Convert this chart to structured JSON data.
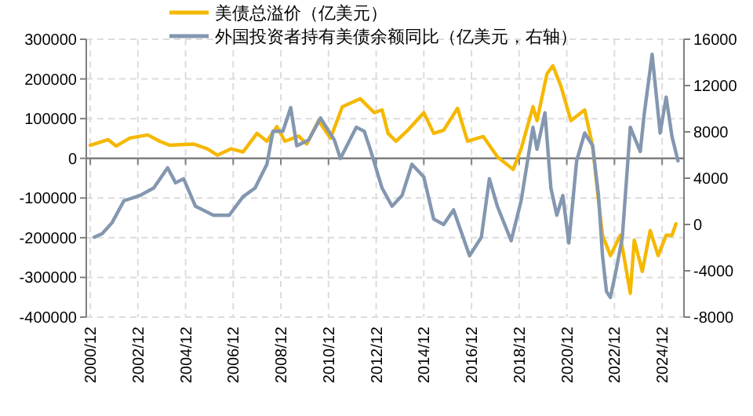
{
  "chart_data": {
    "type": "line",
    "xlim": [
      "2000-10",
      "2025-11"
    ],
    "xticks": [
      {
        "value": "2000-12",
        "label": "2000/12"
      },
      {
        "value": "2002-12",
        "label": "2002/12"
      },
      {
        "value": "2004-12",
        "label": "2004/12"
      },
      {
        "value": "2006-12",
        "label": "2006/12"
      },
      {
        "value": "2008-12",
        "label": "2008/12"
      },
      {
        "value": "2010-12",
        "label": "2010/12"
      },
      {
        "value": "2012-12",
        "label": "2012/12"
      },
      {
        "value": "2014-12",
        "label": "2014/12"
      },
      {
        "value": "2016-12",
        "label": "2016/12"
      },
      {
        "value": "2018-12",
        "label": "2018/12"
      },
      {
        "value": "2020-12",
        "label": "2020/12"
      },
      {
        "value": "2022-12",
        "label": "2022/12"
      },
      {
        "value": "2024-12",
        "label": "2024/12"
      }
    ],
    "ylim": [
      -400000,
      300000
    ],
    "yticks": [
      -400000,
      -300000,
      -200000,
      -100000,
      0,
      100000,
      200000,
      300000
    ],
    "y2lim": [
      -8000,
      16000
    ],
    "y2ticks": [
      -8000,
      -4000,
      0,
      4000,
      8000,
      12000,
      16000
    ],
    "grid": true,
    "legend": "top",
    "line_style": "solid",
    "marker": "none",
    "series": [
      {
        "name": "美债总溢价（亿美元）",
        "color": "#f5b800",
        "x": [
          "2000-12",
          "2001-09",
          "2002-01",
          "2002-08",
          "2003-05",
          "2003-11",
          "2004-04",
          "2005-04",
          "2005-11",
          "2006-04",
          "2006-11",
          "2007-05",
          "2007-12",
          "2008-05",
          "2008-10",
          "2009-02",
          "2009-09",
          "2010-01",
          "2010-07",
          "2011-01",
          "2011-07",
          "2012-04",
          "2012-11",
          "2013-03",
          "2013-06",
          "2013-10",
          "2014-04",
          "2014-12",
          "2015-05",
          "2015-10",
          "2016-05",
          "2016-10",
          "2017-06",
          "2018-01",
          "2018-09",
          "2019-01",
          "2019-07",
          "2019-09",
          "2020-02",
          "2020-05",
          "2020-09",
          "2021-02",
          "2021-09",
          "2022-01",
          "2022-04",
          "2022-06",
          "2022-10",
          "2023-03",
          "2023-08",
          "2023-10",
          "2024-02",
          "2024-06",
          "2024-10",
          "2025-02",
          "2025-05",
          "2025-07"
        ],
        "values": [
          33000,
          47000,
          31000,
          51000,
          59000,
          43000,
          33000,
          36000,
          24000,
          8000,
          24000,
          16000,
          63000,
          43000,
          80000,
          43000,
          56000,
          36000,
          95000,
          51000,
          130000,
          150000,
          115000,
          122000,
          63000,
          43000,
          71000,
          115000,
          63000,
          71000,
          126000,
          43000,
          55000,
          4000,
          -28000,
          24000,
          130000,
          95000,
          213000,
          233000,
          182000,
          95000,
          122000,
          31000,
          -107000,
          -194000,
          -245000,
          -194000,
          -340000,
          -206000,
          -285000,
          -182000,
          -245000,
          -194000,
          -194000,
          -165000
        ]
      },
      {
        "name": "外国投资者持有美债余额同比（亿美元，右轴）",
        "color": "#8497b0",
        "axis": "y2",
        "x": [
          "2001-02",
          "2001-06",
          "2001-11",
          "2002-05",
          "2003-01",
          "2003-08",
          "2004-03",
          "2004-07",
          "2004-11",
          "2005-05",
          "2006-02",
          "2006-10",
          "2007-05",
          "2007-11",
          "2008-05",
          "2008-08",
          "2009-01",
          "2009-05",
          "2009-08",
          "2010-02",
          "2010-08",
          "2011-03",
          "2011-06",
          "2012-02",
          "2012-06",
          "2012-09",
          "2013-03",
          "2013-08",
          "2014-01",
          "2014-06",
          "2014-12",
          "2015-05",
          "2015-10",
          "2016-03",
          "2016-11",
          "2017-05",
          "2017-09",
          "2018-01",
          "2018-08",
          "2019-01",
          "2019-07",
          "2019-09",
          "2020-01",
          "2020-04",
          "2020-07",
          "2020-10",
          "2021-01",
          "2021-05",
          "2021-09",
          "2022-01",
          "2022-04",
          "2022-06",
          "2022-08",
          "2022-10",
          "2023-01",
          "2023-04",
          "2023-08",
          "2024-01",
          "2024-03",
          "2024-07",
          "2024-11",
          "2025-02",
          "2025-05",
          "2025-08"
        ],
        "values": [
          -1100,
          -800,
          160,
          2050,
          2500,
          3150,
          4900,
          3600,
          3950,
          1580,
          800,
          800,
          2400,
          3150,
          5200,
          8050,
          8050,
          10100,
          6800,
          7300,
          9200,
          7300,
          5700,
          8400,
          8050,
          6500,
          3150,
          1580,
          2500,
          5200,
          4100,
          470,
          0,
          1260,
          -2700,
          -1100,
          3950,
          1580,
          -1400,
          2050,
          8400,
          6500,
          9650,
          3150,
          800,
          2500,
          -1600,
          5500,
          7900,
          6800,
          2500,
          -2700,
          -5800,
          -6300,
          -3800,
          -1100,
          8400,
          6300,
          9500,
          14700,
          7900,
          11000,
          7600,
          5500
        ]
      }
    ]
  }
}
